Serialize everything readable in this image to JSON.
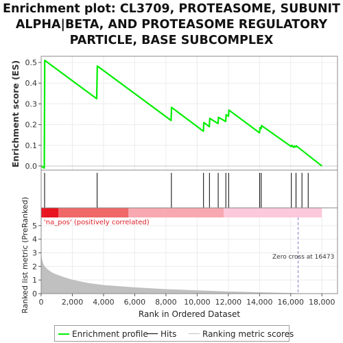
{
  "title_lines": [
    "Enrichment plot: CL3709, PROTEASOME, SUBUNIT",
    "ALPHA|BETA, AND PROTEASOME REGULATORY",
    "PARTICLE, BASE SUBCOMPLEX"
  ],
  "colors": {
    "enrichment_line": "#00ee00",
    "hits": "#000000",
    "metric_fill": "#c0c0c0",
    "zero_cross_line": "#8080c0",
    "positive_label": "#e0212b",
    "band_red_dark": "#e8141e",
    "band_red": "#f06868",
    "band_pink": "#f8a8b0",
    "band_light_pink": "#fcc8dc",
    "grid": "#ececec",
    "axis": "#888888"
  },
  "chart_data": {
    "type": "line",
    "x_range": [
      0,
      19000
    ],
    "x_ticks": [
      0,
      2000,
      4000,
      6000,
      8000,
      10000,
      12000,
      14000,
      16000,
      18000
    ],
    "x_tick_labels": [
      "0",
      "2,000",
      "4,000",
      "6,000",
      "8,000",
      "10,000",
      "12,000",
      "14,000",
      "16,000",
      "18,000"
    ],
    "xlabel": "Rank in Ordered Dataset",
    "top_panel": {
      "ylabel": "Enrichment score (ES)",
      "ylim": [
        -0.02,
        0.53
      ],
      "y_ticks": [
        0.0,
        0.1,
        0.2,
        0.3,
        0.4,
        0.5
      ],
      "y_tick_labels": [
        "0.0",
        "0.1",
        "0.2",
        "0.3",
        "0.4",
        "0.5"
      ],
      "series": [
        {
          "name": "Enrichment profile",
          "x": [
            0,
            200,
            230,
            3560,
            3600,
            8330,
            8360,
            10400,
            10430,
            10780,
            10810,
            11340,
            11370,
            11830,
            11860,
            12010,
            12040,
            14000,
            14030,
            14100,
            14130,
            16030,
            16060,
            16200,
            16230,
            16330,
            16360,
            18000
          ],
          "y": [
            0.0,
            -0.01,
            0.51,
            0.325,
            0.483,
            0.22,
            0.283,
            0.168,
            0.21,
            0.19,
            0.23,
            0.205,
            0.235,
            0.215,
            0.248,
            0.24,
            0.27,
            0.16,
            0.185,
            0.18,
            0.195,
            0.094,
            0.1,
            0.09,
            0.096,
            0.092,
            0.097,
            0.0
          ]
        }
      ],
      "hits": [
        220,
        3590,
        8350,
        10410,
        10790,
        11350,
        11840,
        12020,
        14010,
        14110,
        16040,
        16340,
        16720,
        17120
      ]
    },
    "rank_bands": [
      {
        "from": 0,
        "to": 150,
        "color_key": "band_red_dark"
      },
      {
        "from": 150,
        "to": 1100,
        "color_key": "band_red_dark"
      },
      {
        "from": 1100,
        "to": 5600,
        "color_key": "band_red"
      },
      {
        "from": 5600,
        "to": 7900,
        "color_key": "band_pink"
      },
      {
        "from": 7900,
        "to": 11700,
        "color_key": "band_pink"
      },
      {
        "from": 11700,
        "to": 18000,
        "color_key": "band_light_pink"
      }
    ],
    "bottom_panel": {
      "ylabel": "Ranked list metric (PreRanked)",
      "ylim": [
        0,
        5.6
      ],
      "y_ticks": [
        0,
        1,
        2,
        3,
        4,
        5
      ],
      "y_tick_labels": [
        "0",
        "1",
        "2",
        "3",
        "4",
        "5"
      ],
      "positive_label": "'na_pos' (positively correlated)",
      "zero_cross_label": "Zero cross at 16473",
      "zero_cross_x": 16473,
      "metric": {
        "name": "Ranking metric scores",
        "x": [
          0,
          20,
          100,
          200,
          400,
          700,
          1000,
          1500,
          2000,
          3000,
          4000,
          6000,
          8000,
          10000,
          12000,
          14000,
          16473,
          18000
        ],
        "y": [
          3.4,
          2.7,
          2.3,
          2.05,
          1.8,
          1.55,
          1.4,
          1.2,
          1.02,
          0.78,
          0.63,
          0.46,
          0.33,
          0.24,
          0.16,
          0.1,
          0.03,
          0.0
        ]
      }
    },
    "legend": [
      {
        "label": "Enrichment profile",
        "color_key": "enrichment_line"
      },
      {
        "label": "Hits",
        "color_key": "hits"
      },
      {
        "label": "Ranking metric scores",
        "color_key": "metric_fill"
      }
    ]
  }
}
